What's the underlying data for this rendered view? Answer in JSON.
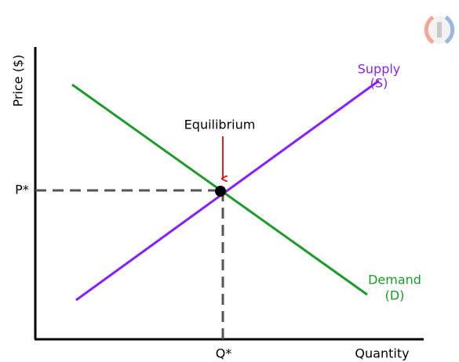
{
  "axes": {
    "y_label": "Price ($)",
    "x_label": "Quantity"
  },
  "curves": [
    {
      "label": "Supply",
      "abbr": "(S)"
    },
    {
      "label": "Demand",
      "abbr": "(D)"
    }
  ],
  "equilibrium": {
    "label": "Equilibrium",
    "price": "P*",
    "quantity": "Q*"
  }
}
